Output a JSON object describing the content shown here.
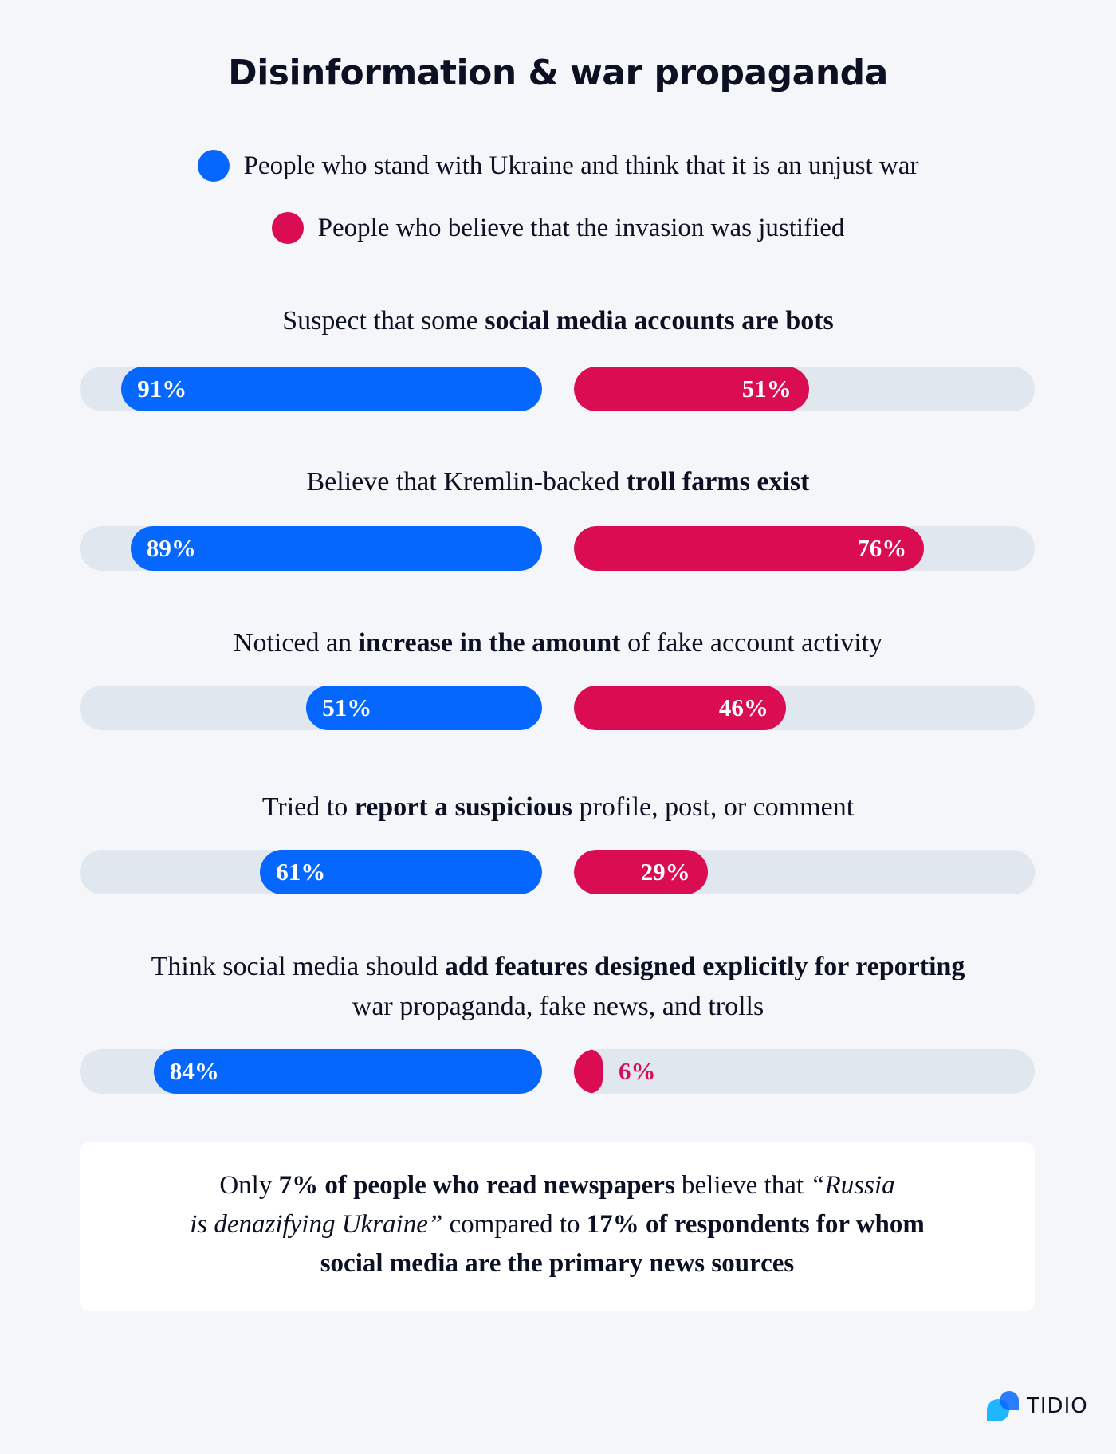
{
  "title": "Disinformation & war propaganda",
  "legend": [
    {
      "label": "People who stand with Ukraine and think that it is an unjust war",
      "color": "#0567fe"
    },
    {
      "label": "People who believe that the invasion was justified",
      "color": "#da0d52"
    }
  ],
  "questions": [
    {
      "parts": [
        {
          "t": "Suspect that some ",
          "b": false
        },
        {
          "t": "social media accounts are bots",
          "b": true
        }
      ],
      "ukraine": "91%",
      "justified": "51%"
    },
    {
      "parts": [
        {
          "t": "Believe that Kremlin-backed ",
          "b": false
        },
        {
          "t": "troll farms exist",
          "b": true
        }
      ],
      "ukraine": "89%",
      "justified": "76%"
    },
    {
      "parts": [
        {
          "t": "Noticed an ",
          "b": false
        },
        {
          "t": "increase in the amount",
          "b": true
        },
        {
          "t": " of fake account activity",
          "b": false
        }
      ],
      "ukraine": "51%",
      "justified": "46%"
    },
    {
      "parts": [
        {
          "t": "Tried to ",
          "b": false
        },
        {
          "t": "report a suspicious",
          "b": true
        },
        {
          "t": " profile, post, or comment",
          "b": false
        }
      ],
      "ukraine": "61%",
      "justified": "29%"
    },
    {
      "parts": [
        {
          "t": "Think social media should ",
          "b": false
        },
        {
          "t": "add features designed explicitly for reporting",
          "b": true
        }
      ],
      "line2": "war propaganda, fake news, and trolls",
      "ukraine": "84%",
      "justified": "6%"
    }
  ],
  "card": {
    "l1a": "Only ",
    "l1b": "7% of people who read newspapers",
    "l1c": " believe that ",
    "l1d": "“Russia",
    "l2a": "is denazifying Ukraine”",
    "l2b": " compared to ",
    "l2c": "17% of respondents for whom",
    "l3": "social media are the primary news sources"
  },
  "logo": {
    "text": "TIDIO",
    "icon": "tidio-logo-icon"
  },
  "chart_data": {
    "type": "bar",
    "title": "Disinformation & war propaganda",
    "orientation": "horizontal-diverging",
    "categories": [
      "Suspect that some social media accounts are bots",
      "Believe that Kremlin-backed troll farms exist",
      "Noticed an increase in the amount of fake account activity",
      "Tried to report a suspicious profile, post, or comment",
      "Think social media should add features designed explicitly for reporting war propaganda, fake news, and trolls"
    ],
    "series": [
      {
        "name": "People who stand with Ukraine and think that it is an unjust war",
        "color": "#0567fe",
        "values": [
          91,
          89,
          51,
          61,
          84
        ]
      },
      {
        "name": "People who believe that the invasion was justified",
        "color": "#da0d52",
        "values": [
          51,
          76,
          46,
          29,
          6
        ]
      }
    ],
    "ylim": [
      0,
      100
    ],
    "unit": "%",
    "legend_position": "top",
    "annotation": "Only 7% of people who read newspapers believe that “Russia is denazifying Ukraine” compared to 17% of respondents for whom social media are the primary news sources"
  }
}
